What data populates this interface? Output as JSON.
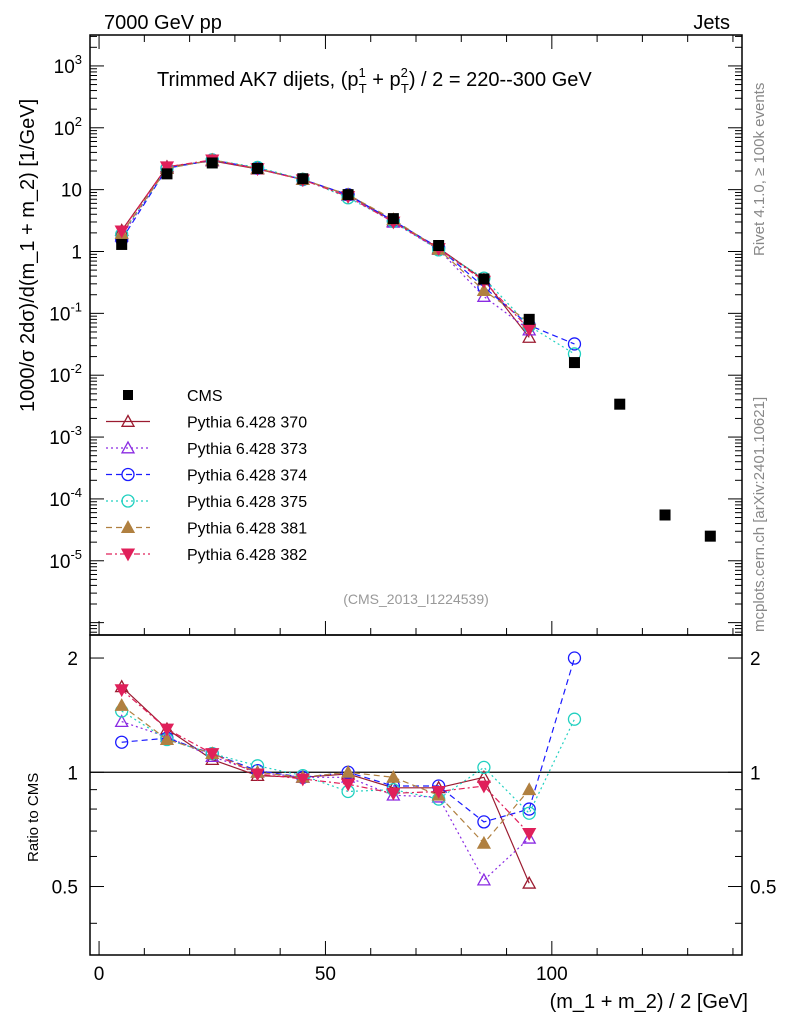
{
  "header": {
    "left": "7000 GeV pp",
    "right": "Jets",
    "side_top": "Rivet 4.1.0, ≥ 100k events",
    "side_bottom": "mcplots.cern.ch [arXiv:2401.10621]",
    "analysis_id": "(CMS_2013_I1224539)"
  },
  "chart_data": {
    "type": "scatter",
    "title": "Trimmed AK7 dijets, (p_T^1 + p_T^2) / 2 = 220--300 GeV",
    "title_parts": {
      "prefix": "Trimmed AK7 dijets, (p",
      "sup1": "1",
      "sub_t": "T",
      "plus": " + p",
      "sup2": "2",
      "suffix": ") / 2 = 220--300 GeV"
    },
    "xlabel": "(m_1 + m_2) / 2 [GeV]",
    "ylabel_parts": {
      "main": "1000/σ   2dσ)/d(m_1 + m_2) [1/GeV]"
    },
    "ratio_ylabel": "Ratio to CMS",
    "xlim": [
      -2,
      142
    ],
    "ylim_log10": [
      -6.2,
      3.5
    ],
    "ratio_ylim": [
      0.33,
      2.3
    ],
    "x_ticks": [
      0,
      50,
      100
    ],
    "y_ticks_exponents": [
      -5,
      -4,
      -3,
      -2,
      -1,
      0,
      1,
      2,
      3
    ],
    "y_tick_labels": [
      "10^-5",
      "10^-4",
      "10^-3",
      "10^-2",
      "10^-1",
      "1",
      "10",
      "10^2",
      "10^3"
    ],
    "ratio_ticks": [
      0.5,
      1,
      2
    ],
    "ratio_tick_labels": [
      "0.5",
      "1",
      "2"
    ],
    "data": {
      "name": "CMS",
      "x": [
        5,
        15,
        25,
        35,
        45,
        55,
        65,
        75,
        85,
        95,
        105,
        115,
        125,
        135
      ],
      "y": [
        1.3,
        18,
        27,
        22,
        15,
        8.3,
        3.4,
        1.25,
        0.36,
        0.08,
        0.016,
        0.0034,
        5.5e-05,
        2.5e-05
      ]
    },
    "series": [
      {
        "name": "Pythia 6.428 370",
        "color": "#9b1b30",
        "marker": "triangle-up-open",
        "dash": "",
        "x": [
          5,
          15,
          25,
          35,
          45,
          55,
          65,
          75,
          85,
          95
        ],
        "ratio": [
          1.68,
          1.3,
          1.08,
          0.98,
          0.97,
          0.99,
          0.91,
          0.91,
          0.97,
          0.51
        ]
      },
      {
        "name": "Pythia 6.428 373",
        "color": "#8a2be2",
        "marker": "triangle-up-open",
        "dash": "2,3",
        "x": [
          5,
          15,
          25,
          35,
          45,
          55,
          65,
          75,
          85,
          95
        ],
        "ratio": [
          1.36,
          1.24,
          1.1,
          1.0,
          0.97,
          0.97,
          0.87,
          0.86,
          0.52,
          0.67
        ]
      },
      {
        "name": "Pythia 6.428 374",
        "color": "#1a1aff",
        "marker": "circle-open",
        "dash": "6,4",
        "x": [
          5,
          15,
          25,
          35,
          45,
          55,
          65,
          75,
          85,
          95,
          105
        ],
        "ratio": [
          1.2,
          1.23,
          1.12,
          1.01,
          0.97,
          1.0,
          0.92,
          0.92,
          0.74,
          0.8,
          2.0
        ]
      },
      {
        "name": "Pythia 6.428 375",
        "color": "#20d0c0",
        "marker": "circle-open",
        "dash": "2,3",
        "x": [
          5,
          15,
          25,
          35,
          45,
          55,
          65,
          75,
          85,
          95,
          105
        ],
        "ratio": [
          1.45,
          1.22,
          1.12,
          1.04,
          0.98,
          0.89,
          0.9,
          0.85,
          1.03,
          0.78,
          1.38
        ]
      },
      {
        "name": "Pythia 6.428 381",
        "color": "#b08040",
        "marker": "triangle-up-filled",
        "dash": "6,4",
        "x": [
          5,
          15,
          25,
          35,
          45,
          55,
          65,
          75,
          85,
          95
        ],
        "ratio": [
          1.5,
          1.22,
          1.12,
          1.0,
          0.97,
          1.0,
          0.97,
          0.87,
          0.65,
          0.9
        ]
      },
      {
        "name": "Pythia 6.428 382",
        "color": "#e0205a",
        "marker": "triangle-down-filled",
        "dash": "6,3,2,3",
        "x": [
          5,
          15,
          25,
          35,
          45,
          55,
          65,
          75,
          85,
          95
        ],
        "ratio": [
          1.65,
          1.3,
          1.12,
          0.99,
          0.96,
          0.93,
          0.88,
          0.89,
          0.92,
          0.69
        ]
      }
    ]
  }
}
